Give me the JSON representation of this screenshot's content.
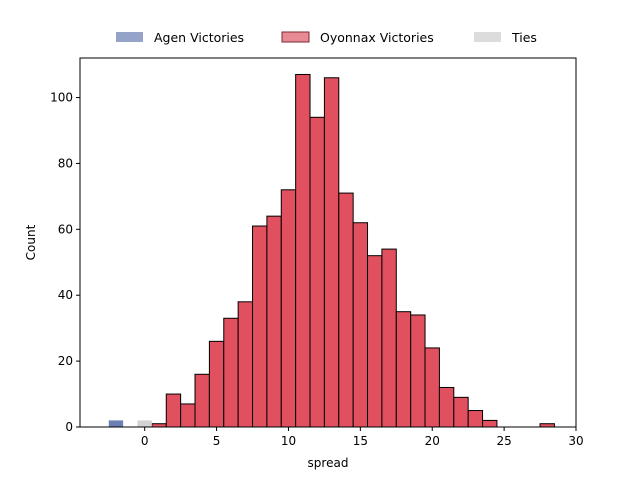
{
  "chart_data": {
    "type": "bar",
    "subtype": "histogram",
    "xlabel": "spread",
    "ylabel": "Count",
    "xlim": [
      -4.5,
      30
    ],
    "ylim": [
      0,
      112
    ],
    "xticks": [
      0,
      5,
      10,
      15,
      20,
      25,
      30
    ],
    "yticks": [
      0,
      20,
      40,
      60,
      80,
      100
    ],
    "grid": false,
    "legend_position": "top-center",
    "series": [
      {
        "name": "Agen Victories",
        "color": "#6b7fb5",
        "bins": [
          {
            "start": -2.5,
            "end": -1.5,
            "count": 2
          }
        ]
      },
      {
        "name": "Oyonnax Victories",
        "color": "#e0505f",
        "bins": [
          {
            "start": 0.5,
            "end": 1.5,
            "count": 1
          },
          {
            "start": 1.5,
            "end": 2.5,
            "count": 10
          },
          {
            "start": 2.5,
            "end": 3.5,
            "count": 7
          },
          {
            "start": 3.5,
            "end": 4.5,
            "count": 16
          },
          {
            "start": 4.5,
            "end": 5.5,
            "count": 26
          },
          {
            "start": 5.5,
            "end": 6.5,
            "count": 33
          },
          {
            "start": 6.5,
            "end": 7.5,
            "count": 38
          },
          {
            "start": 7.5,
            "end": 8.5,
            "count": 61
          },
          {
            "start": 8.5,
            "end": 9.5,
            "count": 64
          },
          {
            "start": 9.5,
            "end": 10.5,
            "count": 72
          },
          {
            "start": 10.5,
            "end": 11.5,
            "count": 107
          },
          {
            "start": 11.5,
            "end": 12.5,
            "count": 94
          },
          {
            "start": 12.5,
            "end": 13.5,
            "count": 106
          },
          {
            "start": 13.5,
            "end": 14.5,
            "count": 71
          },
          {
            "start": 14.5,
            "end": 15.5,
            "count": 62
          },
          {
            "start": 15.5,
            "end": 16.5,
            "count": 52
          },
          {
            "start": 16.5,
            "end": 17.5,
            "count": 54
          },
          {
            "start": 17.5,
            "end": 18.5,
            "count": 35
          },
          {
            "start": 18.5,
            "end": 19.5,
            "count": 34
          },
          {
            "start": 19.5,
            "end": 20.5,
            "count": 24
          },
          {
            "start": 20.5,
            "end": 21.5,
            "count": 12
          },
          {
            "start": 21.5,
            "end": 22.5,
            "count": 9
          },
          {
            "start": 22.5,
            "end": 23.5,
            "count": 5
          },
          {
            "start": 23.5,
            "end": 24.5,
            "count": 2
          },
          {
            "start": 27.5,
            "end": 28.5,
            "count": 1
          }
        ]
      },
      {
        "name": "Ties",
        "color": "#d3d3d3",
        "bins": [
          {
            "start": -0.5,
            "end": 0.5,
            "count": 2
          }
        ]
      }
    ]
  }
}
